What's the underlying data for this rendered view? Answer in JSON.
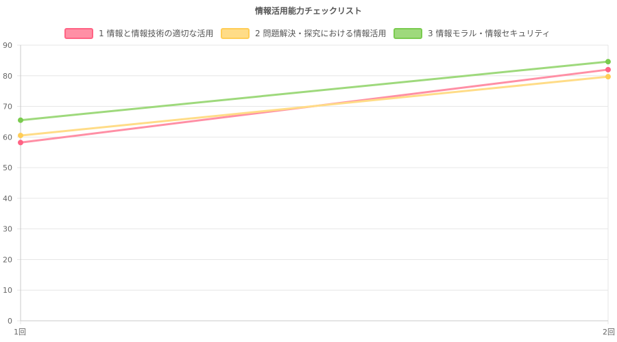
{
  "chart_data": {
    "type": "line",
    "title": "情報活用能力チェックリスト",
    "categories": [
      "1回",
      "2回"
    ],
    "ylim": [
      0,
      90
    ],
    "yticks": [
      0,
      10,
      20,
      30,
      40,
      50,
      60,
      70,
      80,
      90
    ],
    "grid": true,
    "legend_position": "top",
    "series": [
      {
        "name": "1 情報と情報技術の適切な活用",
        "values": [
          58.2,
          82.0
        ],
        "color": "#ff6384",
        "fill": "#ff8fa5"
      },
      {
        "name": "2 問題解決・探究における情報活用",
        "values": [
          60.5,
          79.7
        ],
        "color": "#ffcd56",
        "fill": "#ffdc87"
      },
      {
        "name": "3 情報モラル・情報セキュリティ",
        "values": [
          65.5,
          84.6
        ],
        "color": "#7acb4f",
        "fill": "#9ed97c"
      }
    ]
  }
}
